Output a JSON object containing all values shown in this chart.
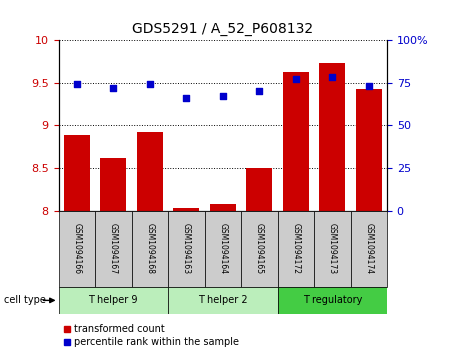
{
  "title": "GDS5291 / A_52_P608132",
  "samples": [
    "GSM1094166",
    "GSM1094167",
    "GSM1094168",
    "GSM1094163",
    "GSM1094164",
    "GSM1094165",
    "GSM1094172",
    "GSM1094173",
    "GSM1094174"
  ],
  "transformed_counts": [
    8.88,
    8.62,
    8.92,
    8.03,
    8.08,
    8.5,
    9.62,
    9.73,
    9.42
  ],
  "percentile_ranks": [
    74,
    72,
    74,
    66,
    67,
    70,
    77,
    78,
    73
  ],
  "ylim_left": [
    8.0,
    10.0
  ],
  "ylim_right": [
    0,
    100
  ],
  "yticks_left": [
    8.0,
    8.5,
    9.0,
    9.5,
    10.0
  ],
  "ytick_labels_left": [
    "8",
    "8.5",
    "9",
    "9.5",
    "10"
  ],
  "yticks_right": [
    0,
    25,
    50,
    75,
    100
  ],
  "ytick_labels_right": [
    "0",
    "25",
    "50",
    "75",
    "100%"
  ],
  "bar_color": "#cc0000",
  "dot_color": "#0000cc",
  "sample_box_color": "#cccccc",
  "cell_types": [
    {
      "label": "T helper 9",
      "start": 0,
      "end": 3,
      "color": "#bbeebb"
    },
    {
      "label": "T helper 2",
      "start": 3,
      "end": 6,
      "color": "#bbeebb"
    },
    {
      "label": "T regulatory",
      "start": 6,
      "end": 9,
      "color": "#44cc44"
    }
  ],
  "cell_type_label": "cell type",
  "legend_bar_label": "transformed count",
  "legend_dot_label": "percentile rank within the sample",
  "tick_color_left": "#cc0000",
  "tick_color_right": "#0000cc"
}
